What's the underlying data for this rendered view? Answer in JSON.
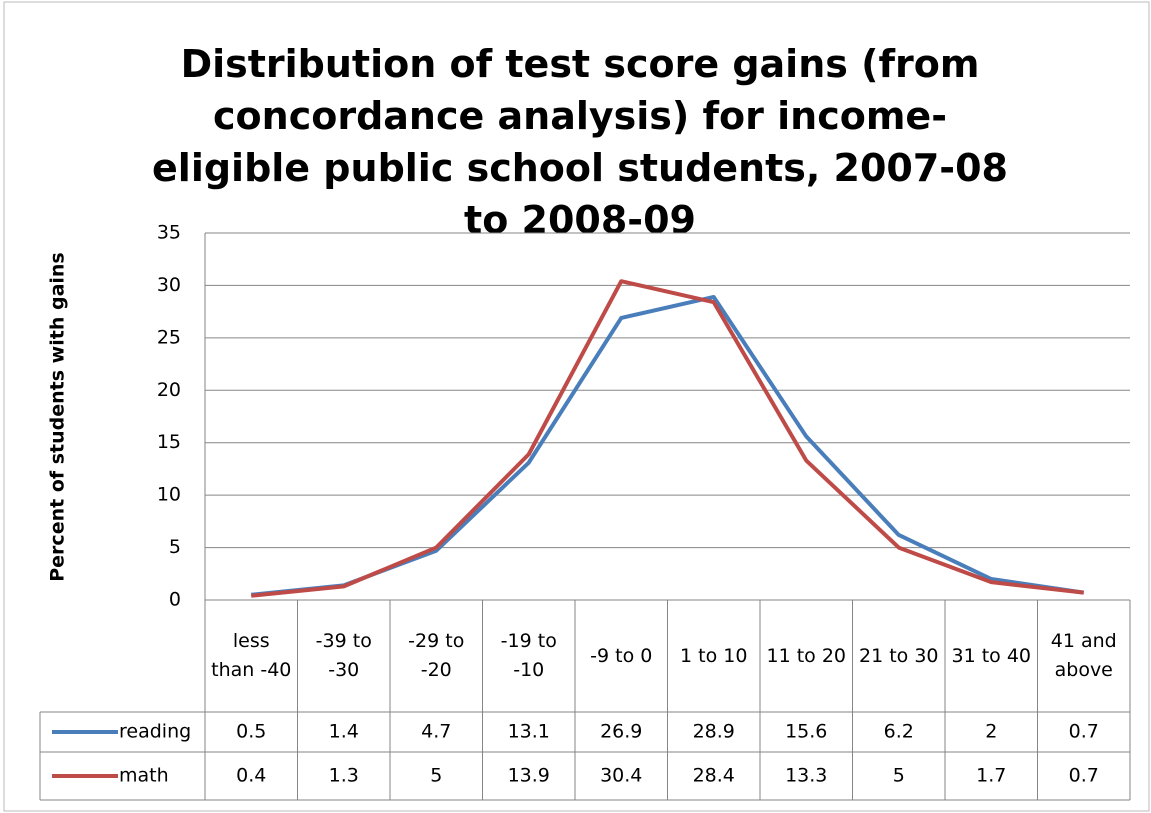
{
  "chart_data": {
    "type": "line",
    "title": "Distribution of test score gains (from concordance analysis) for income-eligible public school students, 2007-08 to 2008-09",
    "y_label": "Percent of students with gains",
    "categories": [
      "less than -40",
      "-39 to -30",
      "-29 to -20",
      "-19 to -10",
      "-9 to 0",
      "1 to 10",
      "11 to 20",
      "21 to 30",
      "31 to 40",
      "41 and above"
    ],
    "series": [
      {
        "name": "reading",
        "color": "#4a7ebb",
        "values": [
          0.5,
          1.4,
          4.7,
          13.1,
          26.9,
          28.9,
          15.6,
          6.2,
          2,
          0.7
        ]
      },
      {
        "name": "math",
        "color": "#be4b48",
        "values": [
          0.4,
          1.3,
          5,
          13.9,
          30.4,
          28.4,
          13.3,
          5,
          1.7,
          0.7
        ]
      }
    ],
    "ylim": [
      0,
      35
    ],
    "yticks": [
      0,
      5,
      10,
      15,
      20,
      25,
      30,
      35
    ],
    "grid": true
  }
}
